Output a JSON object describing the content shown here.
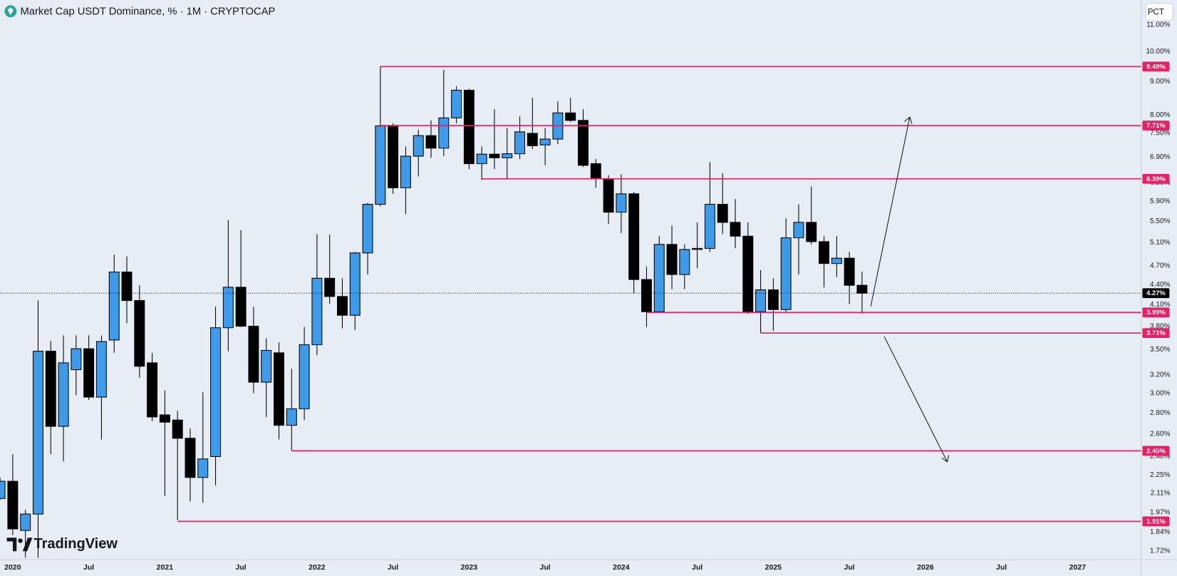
{
  "chart_data": {
    "type": "candlestick",
    "title": "Market Cap USDT Dominance, % · 1M · CRYPTOCAP",
    "scale_button": "PCT",
    "brand": "TradingView",
    "ylog": true,
    "ylim": [
      1.67,
      12.0
    ],
    "xlim": [
      "2019-12",
      "2027-06"
    ],
    "up_color": "#3d9be9",
    "down_color": "#000000",
    "x": [
      "2019-12",
      "2020-01",
      "2020-02",
      "2020-03",
      "2020-04",
      "2020-05",
      "2020-06",
      "2020-07",
      "2020-08",
      "2020-09",
      "2020-10",
      "2020-11",
      "2020-12",
      "2021-01",
      "2021-02",
      "2021-03",
      "2021-04",
      "2021-05",
      "2021-06",
      "2021-07",
      "2021-08",
      "2021-09",
      "2021-10",
      "2021-11",
      "2021-12",
      "2022-01",
      "2022-02",
      "2022-03",
      "2022-04",
      "2022-05",
      "2022-06",
      "2022-07",
      "2022-08",
      "2022-09",
      "2022-10",
      "2022-11",
      "2022-12",
      "2023-01",
      "2023-02",
      "2023-03",
      "2023-04",
      "2023-05",
      "2023-06",
      "2023-07",
      "2023-08",
      "2023-09",
      "2023-10",
      "2023-11",
      "2023-12",
      "2024-01",
      "2024-02",
      "2024-03",
      "2024-04",
      "2024-05",
      "2024-06",
      "2024-07",
      "2024-08",
      "2024-09",
      "2024-10",
      "2024-11",
      "2024-12",
      "2025-01",
      "2025-02",
      "2025-03",
      "2025-04",
      "2025-05",
      "2025-06",
      "2025-07",
      "2025-08"
    ],
    "open": [
      2.07,
      2.2,
      1.85,
      1.96,
      3.48,
      2.67,
      3.26,
      3.51,
      2.96,
      3.62,
      4.6,
      4.16,
      3.34,
      2.78,
      2.73,
      2.56,
      2.23,
      2.4,
      3.78,
      4.36,
      3.8,
      3.12,
      3.46,
      2.68,
      2.84,
      3.56,
      4.5,
      4.22,
      3.95,
      4.92,
      5.84,
      7.7,
      6.19,
      6.92,
      7.44,
      7.12,
      7.92,
      8.73,
      6.74,
      6.97,
      6.88,
      6.98,
      7.5,
      7.2,
      7.35,
      8.06,
      7.85,
      6.74,
      6.39,
      5.68,
      6.06,
      4.48,
      4.0,
      5.07,
      4.56,
      4.98,
      5.0,
      5.84,
      5.48,
      5.22,
      4.0,
      4.32,
      4.03,
      5.19,
      5.48,
      5.12,
      4.74,
      4.83,
      4.39
    ],
    "high": [
      2.23,
      2.42,
      1.99,
      4.16,
      3.61,
      3.68,
      3.68,
      3.68,
      3.68,
      4.89,
      4.86,
      4.39,
      3.46,
      3.03,
      2.82,
      2.65,
      3.01,
      4.07,
      5.52,
      5.33,
      4.07,
      3.64,
      3.59,
      3.27,
      3.79,
      5.26,
      5.25,
      4.5,
      4.94,
      5.87,
      9.49,
      7.77,
      7.16,
      7.6,
      7.85,
      9.38,
      8.86,
      8.78,
      7.16,
      8.17,
      7.64,
      7.96,
      8.5,
      7.64,
      8.4,
      8.5,
      8.17,
      6.85,
      6.47,
      6.49,
      6.1,
      4.69,
      5.22,
      5.42,
      5.07,
      5.48,
      6.78,
      6.52,
      5.95,
      5.48,
      4.63,
      4.5,
      5.56,
      5.84,
      6.22,
      5.22,
      5.22,
      4.94,
      4.61
    ],
    "low": [
      2.06,
      1.82,
      1.68,
      1.68,
      2.42,
      2.36,
      2.98,
      2.93,
      2.55,
      3.46,
      3.84,
      3.17,
      2.72,
      2.09,
      1.92,
      2.05,
      2.04,
      2.17,
      3.48,
      3.79,
      3.0,
      2.76,
      2.55,
      2.45,
      2.73,
      3.43,
      4.11,
      3.77,
      3.75,
      4.56,
      5.8,
      6.06,
      5.64,
      6.44,
      6.88,
      6.92,
      7.77,
      6.61,
      6.36,
      6.61,
      6.39,
      6.85,
      7.1,
      6.7,
      7.22,
      7.81,
      6.66,
      6.19,
      5.45,
      5.28,
      4.27,
      3.79,
      4.0,
      4.33,
      4.33,
      4.66,
      4.94,
      5.26,
      5.0,
      3.97,
      3.71,
      3.74,
      4.0,
      4.56,
      5.07,
      4.36,
      4.52,
      4.11,
      3.97
    ],
    "close": [
      2.2,
      1.86,
      1.96,
      3.48,
      2.67,
      3.34,
      3.51,
      2.96,
      3.6,
      4.6,
      4.16,
      3.3,
      2.76,
      2.71,
      2.56,
      2.23,
      2.38,
      3.78,
      4.36,
      3.8,
      3.12,
      3.49,
      2.68,
      2.84,
      3.56,
      4.5,
      4.22,
      3.95,
      4.92,
      5.84,
      7.7,
      6.19,
      6.92,
      7.44,
      7.12,
      7.92,
      8.73,
      6.74,
      6.97,
      6.88,
      6.98,
      7.54,
      7.18,
      7.35,
      8.06,
      7.85,
      6.7,
      6.39,
      5.68,
      6.06,
      4.48,
      4.0,
      5.07,
      4.56,
      4.98,
      5.0,
      5.84,
      5.48,
      5.22,
      4.0,
      4.32,
      4.03,
      5.19,
      5.48,
      5.12,
      4.74,
      4.83,
      4.39,
      4.27
    ],
    "levels": [
      {
        "value": 9.49,
        "label": "9.49%",
        "start": "2022-06",
        "color": "#e91e63",
        "line": "solid"
      },
      {
        "value": 7.71,
        "label": "7.71%",
        "start": "2022-06",
        "color": "#e91e63",
        "line": "solid"
      },
      {
        "value": 6.39,
        "label": "6.39%",
        "start": "2023-02",
        "color": "#e91e63",
        "line": "solid"
      },
      {
        "value": 4.27,
        "label": "4.27%",
        "color": "#000000",
        "line": "dotted"
      },
      {
        "value": 3.99,
        "label": "3.99%",
        "start": "2024-03",
        "color": "#e91e63",
        "line": "solid"
      },
      {
        "value": 3.71,
        "label": "3.71%",
        "start": "2024-12",
        "color": "#e91e63",
        "line": "solid"
      },
      {
        "value": 2.45,
        "label": "2.45%",
        "start": "2021-11",
        "color": "#e91e63",
        "line": "solid"
      },
      {
        "value": 1.91,
        "label": "1.91%",
        "start": "2021-02",
        "color": "#e91e63",
        "line": "solid"
      }
    ],
    "yticks": [
      {
        "value": 11,
        "label": "11.00%"
      },
      {
        "value": 10,
        "label": "10.00%"
      },
      {
        "value": 9,
        "label": "9.00%"
      },
      {
        "value": 8,
        "label": "8.00%"
      },
      {
        "value": 7.5,
        "label": "7.50%"
      },
      {
        "value": 6.9,
        "label": "6.90%"
      },
      {
        "value": 6.3,
        "label": "6.30%"
      },
      {
        "value": 5.9,
        "label": "5.90%"
      },
      {
        "value": 5.5,
        "label": "5.50%"
      },
      {
        "value": 5.1,
        "label": "5.10%"
      },
      {
        "value": 4.7,
        "label": "4.70%"
      },
      {
        "value": 4.4,
        "label": "4.40%"
      },
      {
        "value": 4.1,
        "label": "4.10%"
      },
      {
        "value": 3.8,
        "label": "3.80%"
      },
      {
        "value": 3.5,
        "label": "3.50%"
      },
      {
        "value": 3.2,
        "label": "3.20%"
      },
      {
        "value": 3.0,
        "label": "3.00%"
      },
      {
        "value": 2.8,
        "label": "2.80%"
      },
      {
        "value": 2.6,
        "label": "2.60%"
      },
      {
        "value": 2.4,
        "label": "2.40%"
      },
      {
        "value": 2.25,
        "label": "2.25%"
      },
      {
        "value": 2.11,
        "label": "2.11%"
      },
      {
        "value": 1.97,
        "label": "1.97%"
      },
      {
        "value": 1.84,
        "label": "1.84%"
      },
      {
        "value": 1.72,
        "label": "1.72%"
      }
    ],
    "xticks": [
      {
        "value": "2020-01",
        "label": "2020"
      },
      {
        "value": "2020-07",
        "label": "Jul"
      },
      {
        "value": "2021-01",
        "label": "2021"
      },
      {
        "value": "2021-07",
        "label": "Jul"
      },
      {
        "value": "2022-01",
        "label": "2022"
      },
      {
        "value": "2022-07",
        "label": "Jul"
      },
      {
        "value": "2023-01",
        "label": "2023"
      },
      {
        "value": "2023-07",
        "label": "Jul"
      },
      {
        "value": "2024-01",
        "label": "2024"
      },
      {
        "value": "2024-07",
        "label": "Jul"
      },
      {
        "value": "2025-01",
        "label": "2025"
      },
      {
        "value": "2025-07",
        "label": "Jul"
      },
      {
        "value": "2026-01",
        "label": "2026"
      },
      {
        "value": "2026-07",
        "label": "Jul"
      },
      {
        "value": "2027-01",
        "label": "2027"
      }
    ]
  }
}
